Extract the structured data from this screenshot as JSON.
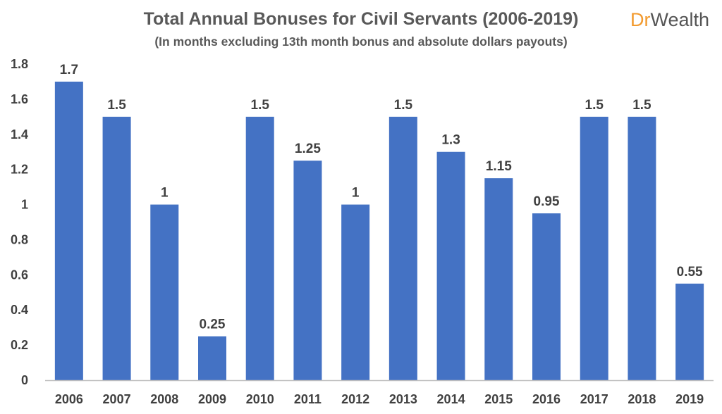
{
  "logo": {
    "part1": "Dr",
    "part2": "Wealth",
    "color1": "#F29A2E",
    "color2": "#555555"
  },
  "chart_data": {
    "type": "bar",
    "title": "Total Annual Bonuses for Civil Servants (2006-2019)",
    "subtitle": "(In months excluding 13th month bonus and absolute dollars payouts)",
    "xlabel": "",
    "ylabel": "",
    "categories": [
      "2006",
      "2007",
      "2008",
      "2009",
      "2010",
      "2011",
      "2012",
      "2013",
      "2014",
      "2015",
      "2016",
      "2017",
      "2018",
      "2019"
    ],
    "values": [
      1.7,
      1.5,
      1,
      0.25,
      1.5,
      1.25,
      1,
      1.5,
      1.3,
      1.15,
      0.95,
      1.5,
      1.5,
      0.55
    ],
    "data_labels": [
      "1.7",
      "1.5",
      "1",
      "0.25",
      "1.5",
      "1.25",
      "1",
      "1.5",
      "1.3",
      "1.15",
      "0.95",
      "1.5",
      "1.5",
      "0.55"
    ],
    "ylim": [
      0,
      1.8
    ],
    "yticks": [
      0,
      0.2,
      0.4,
      0.6,
      0.8,
      1,
      1.2,
      1.4,
      1.6,
      1.8
    ],
    "ytick_labels": [
      "0",
      "0.2",
      "0.4",
      "0.6",
      "0.8",
      "1",
      "1.2",
      "1.4",
      "1.6",
      "1.8"
    ],
    "grid": false,
    "legend": "none",
    "bar_color": "#4472C4",
    "axis_color": "#bfbfbf"
  }
}
